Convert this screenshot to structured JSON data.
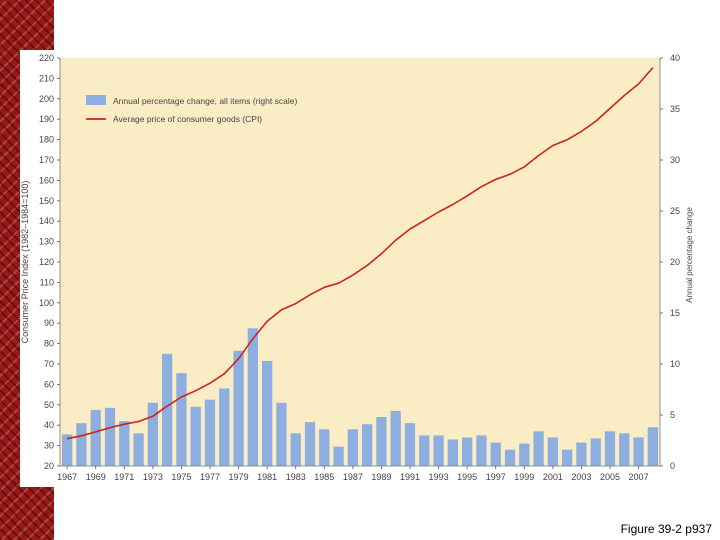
{
  "caption": "Figure 39-2 p937",
  "chart_data": {
    "type": "bar+line",
    "years": [
      1967,
      1968,
      1969,
      1970,
      1971,
      1972,
      1973,
      1974,
      1975,
      1976,
      1977,
      1978,
      1979,
      1980,
      1981,
      1982,
      1983,
      1984,
      1985,
      1986,
      1987,
      1988,
      1989,
      1990,
      1991,
      1992,
      1993,
      1994,
      1995,
      1996,
      1997,
      1998,
      1999,
      2000,
      2001,
      2002,
      2003,
      2004,
      2005,
      2006,
      2007,
      2008
    ],
    "x_tick_labels": [
      "1967",
      "1969",
      "1971",
      "1973",
      "1975",
      "1977",
      "1979",
      "1981",
      "1983",
      "1985",
      "1987",
      "1989",
      "1991",
      "1993",
      "1995",
      "1997",
      "1999",
      "2001",
      "2003",
      "2005",
      "2007"
    ],
    "series": [
      {
        "name": "Annual percentage change, all items (right scale)",
        "kind": "bar",
        "axis": "right",
        "color": "#8eaee0",
        "values": [
          3.1,
          4.2,
          5.5,
          5.7,
          4.4,
          3.2,
          6.2,
          11.0,
          9.1,
          5.8,
          6.5,
          7.6,
          11.3,
          13.5,
          10.3,
          6.2,
          3.2,
          4.3,
          3.6,
          1.9,
          3.6,
          4.1,
          4.8,
          5.4,
          4.2,
          3.0,
          3.0,
          2.6,
          2.8,
          3.0,
          2.3,
          1.6,
          2.2,
          3.4,
          2.8,
          1.6,
          2.3,
          2.7,
          3.4,
          3.2,
          2.8,
          3.8
        ]
      },
      {
        "name": "Average price of consumer goods (CPI)",
        "kind": "line",
        "axis": "left",
        "color": "#cc2222",
        "values": [
          33.4,
          34.8,
          36.7,
          38.8,
          40.5,
          41.8,
          44.4,
          49.3,
          53.8,
          56.9,
          60.6,
          65.2,
          72.6,
          82.4,
          90.9,
          96.5,
          99.6,
          103.9,
          107.6,
          109.6,
          113.6,
          118.3,
          124.0,
          130.7,
          136.2,
          140.3,
          144.5,
          148.2,
          152.4,
          156.9,
          160.5,
          163.0,
          166.6,
          172.2,
          177.1,
          179.9,
          184.0,
          188.9,
          195.3,
          201.6,
          207.3,
          215.3
        ]
      }
    ],
    "left_axis": {
      "label": "Consumer Price Index (1982–1984=100)",
      "ylim": [
        20,
        220
      ],
      "ticks": [
        "20",
        "30",
        "40",
        "50",
        "60",
        "70",
        "80",
        "90",
        "100",
        "110",
        "120",
        "130",
        "140",
        "150",
        "160",
        "170",
        "180",
        "190",
        "200",
        "210",
        "220"
      ]
    },
    "right_axis": {
      "label": "Annual percentage change",
      "ylim": [
        0,
        40
      ],
      "ticks": [
        "0",
        "5",
        "10",
        "15",
        "20",
        "25",
        "30",
        "35",
        "40"
      ]
    },
    "legend_position": "top-left",
    "colors": {
      "plot_background": "#faedc6"
    }
  }
}
